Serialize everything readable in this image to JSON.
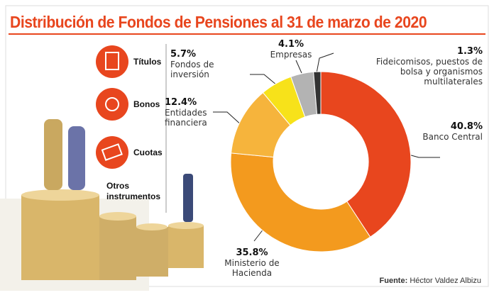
{
  "header": {
    "title": "Distribución de Fondos de Pensiones al 31 de marzo de 2020"
  },
  "sidebar": {
    "items": [
      "Títulos",
      "Bonos",
      "Cuotas",
      "Otros instrumentos"
    ]
  },
  "source": {
    "label": "Fuente:",
    "text": "Héctor Valdez Albizu"
  },
  "chart_data": {
    "type": "donut",
    "categories": [
      "Banco Central",
      "Ministerio de Hacienda",
      "Entidades financiera",
      "Fondos de inversión",
      "Empresas",
      "Fideicomisos, puestos de bolsa y organismos multilaterales"
    ],
    "values": [
      40.8,
      35.8,
      12.4,
      5.7,
      4.1,
      1.3
    ],
    "value_labels": [
      "40.8%",
      "35.8%",
      "12.4%",
      "5.7%",
      "4.1%",
      "1.3%"
    ],
    "colors": [
      "#e8461e",
      "#f39a1e",
      "#f6b43c",
      "#f7e21a",
      "#b3b3b3",
      "#333333"
    ]
  }
}
